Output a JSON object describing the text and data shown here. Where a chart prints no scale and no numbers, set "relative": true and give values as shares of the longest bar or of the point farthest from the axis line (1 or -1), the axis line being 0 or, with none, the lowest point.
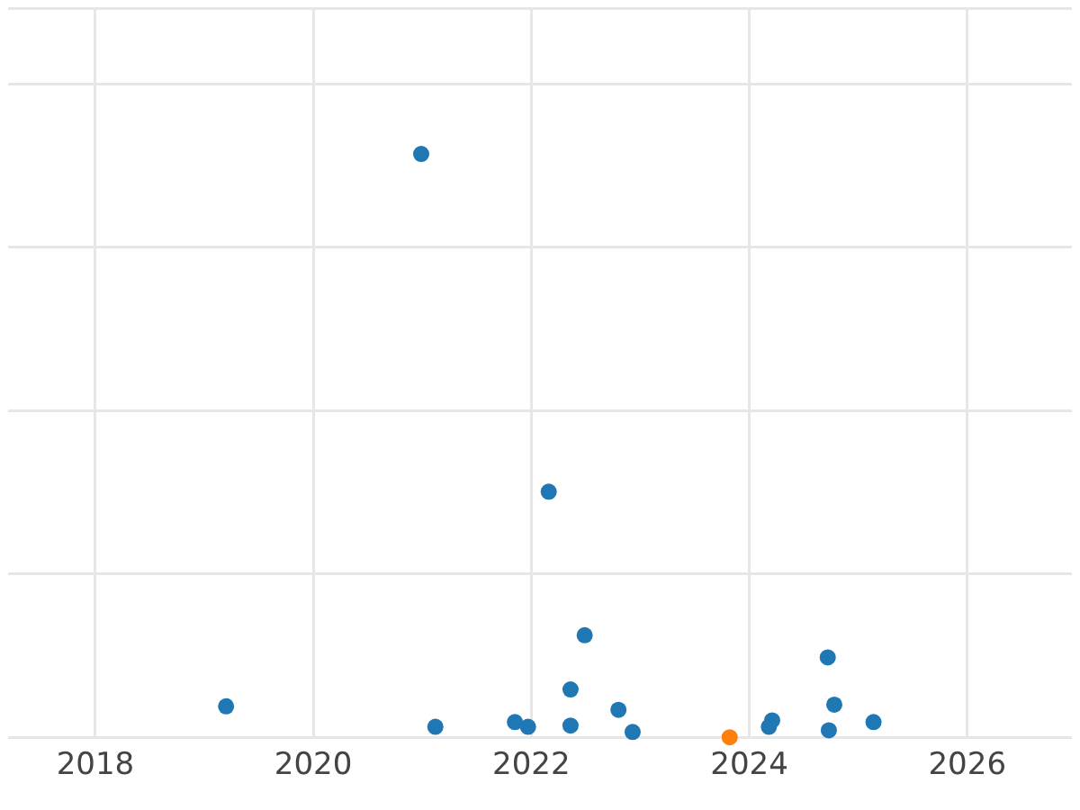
{
  "chart_data": {
    "type": "scatter",
    "relative": true,
    "grid": true,
    "marker": "circle",
    "xlim": [
      2017.2,
      2026.96
    ],
    "xticks": [
      2018,
      2020,
      2022,
      2024,
      2026
    ],
    "series": [
      {
        "color": "#1f77b4",
        "x": [
          2019.2,
          2020.99,
          2021.12,
          2021.85,
          2021.97,
          2022.16,
          2022.36,
          2022.36,
          2022.49,
          2022.8,
          2022.93,
          2024.18,
          2024.21,
          2024.72,
          2024.73,
          2024.78,
          2025.14
        ],
        "values": [
          0.053,
          1,
          0.018,
          0.026,
          0.018,
          0.421,
          0.082,
          0.02,
          0.175,
          0.047,
          0.009,
          0.018,
          0.029,
          0.137,
          0.012,
          0.056,
          0.026
        ]
      },
      {
        "color": "#ff7f0e",
        "x": [
          2023.82
        ],
        "values": [
          0
        ]
      }
    ]
  }
}
